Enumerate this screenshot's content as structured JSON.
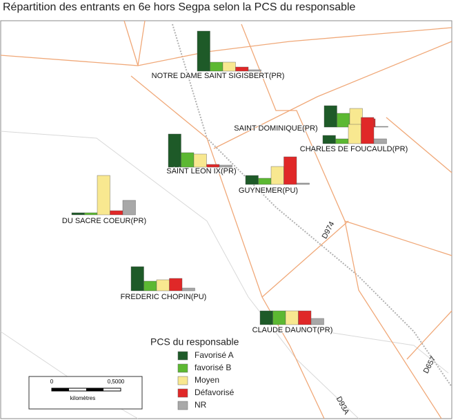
{
  "title": "Répartition des entrants en 6e hors Segpa selon la PCS du responsable",
  "legend": {
    "title": "PCS du responsable",
    "items": [
      {
        "label": "Favorisé A",
        "color": "#1e5a28"
      },
      {
        "label": "favorisé B",
        "color": "#5cb832"
      },
      {
        "label": "Moyen",
        "color": "#f8e890"
      },
      {
        "label": "Défavorisé",
        "color": "#e02828"
      },
      {
        "label": "NR",
        "color": "#a8a8a8"
      }
    ]
  },
  "schools": [
    {
      "name": "NOTRE DAME SAINT SIGISBERT(PR)",
      "values": [
        58,
        13,
        13,
        6,
        2
      ]
    },
    {
      "name": "SAINT DOMINIQUE(PR)",
      "values": [
        31,
        20,
        27,
        12,
        1
      ]
    },
    {
      "name": "CHARLES DE FOUCAULD(PR)",
      "values": [
        12,
        7,
        28,
        38,
        7
      ]
    },
    {
      "name": "SAINT LEON IX(PR)",
      "values": [
        48,
        21,
        19,
        4,
        3
      ]
    },
    {
      "name": "GUYNEMER(PU)",
      "values": [
        13,
        9,
        26,
        40,
        2
      ]
    },
    {
      "name": "DU SACRE COEUR(PR)",
      "values": [
        3,
        3,
        57,
        6,
        21
      ]
    },
    {
      "name": "FREDERIC CHOPIN(PU)",
      "values": [
        35,
        14,
        16,
        18,
        4
      ]
    },
    {
      "name": "CLAUDE DAUNOT(PR)",
      "values": [
        20,
        20,
        20,
        20,
        9
      ]
    }
  ],
  "scale_bar": {
    "start": "0",
    "end": "0,5000",
    "unit": "kilomètres"
  },
  "road_labels": [
    "D974",
    "D93A",
    "D657"
  ]
}
